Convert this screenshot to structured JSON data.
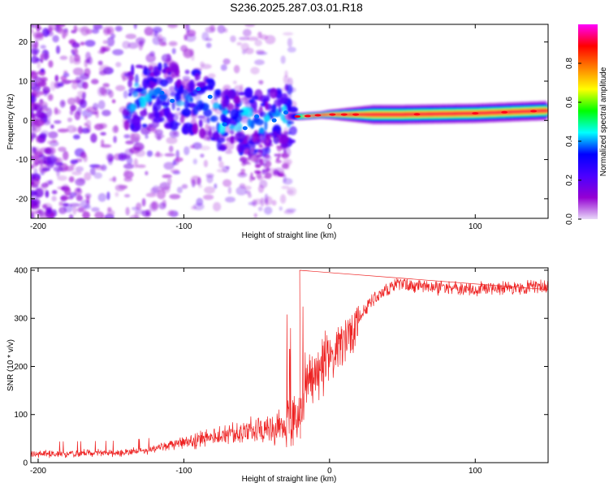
{
  "title": "S236.2025.287.03.01.R18",
  "colors": {
    "snr_line": "#ee2222",
    "background": "#ffffff",
    "axis": "#000000",
    "spectrogram_noise": "#8a2be2",
    "spectrogram_core": "#1e90ff",
    "spectrogram_peak": "#ff2020"
  },
  "chart_data": [
    {
      "type": "heatmap",
      "name": "spectrogram",
      "xlabel": "Height of straight line (km)",
      "ylabel": "Frequency (Hz)",
      "xlim": [
        -205,
        150
      ],
      "ylim": [
        -25,
        24.5
      ],
      "xticks": [
        -200,
        -100,
        0,
        100
      ],
      "xtick_labels": [
        "-200",
        "-100",
        "0",
        "100"
      ],
      "yticks": [
        -20,
        -10,
        0,
        10,
        20
      ],
      "ytick_labels": [
        "-20",
        "-10",
        "0",
        "10",
        "20"
      ],
      "colorbar": {
        "label": "Normalized spectral amplitude",
        "range": [
          0,
          1
        ],
        "ticks": [
          0.0,
          0.2,
          0.4,
          0.6,
          0.8
        ],
        "tick_labels": [
          "0.0",
          "0.2",
          "0.4",
          "0.6",
          "0.8"
        ],
        "colormap": [
          "#e8d8f8",
          "#9400d3",
          "#4b00ff",
          "#0000ff",
          "#00ffff",
          "#00ff00",
          "#ffff00",
          "#ff8000",
          "#ff0000",
          "#ff00ff"
        ]
      },
      "ridge_frequency_hz": [
        {
          "x": -130,
          "y": 6
        },
        {
          "x": -110,
          "y": 6
        },
        {
          "x": -90,
          "y": 5
        },
        {
          "x": -75,
          "y": 1
        },
        {
          "x": -50,
          "y": -1
        },
        {
          "x": -30,
          "y": 1
        },
        {
          "x": -20,
          "y": 1
        },
        {
          "x": 0,
          "y": 1.5
        },
        {
          "x": 50,
          "y": 1.5
        },
        {
          "x": 100,
          "y": 1.8
        },
        {
          "x": 150,
          "y": 2.5
        }
      ]
    },
    {
      "type": "line",
      "name": "snr",
      "xlabel": "Height of straight line (km)",
      "ylabel": "SNR (10 * v/v)",
      "xlim": [
        -205,
        150
      ],
      "ylim": [
        0,
        405
      ],
      "xticks": [
        -200,
        -100,
        0,
        100
      ],
      "xtick_labels": [
        "-200",
        "-100",
        "0",
        "100"
      ],
      "yticks": [
        0,
        100,
        200,
        300,
        400
      ],
      "ytick_labels": [
        "0",
        "100",
        "200",
        "300",
        "400"
      ],
      "series": [
        {
          "name": "SNR",
          "trend": [
            {
              "x": -205,
              "y": 18
            },
            {
              "x": -150,
              "y": 20
            },
            {
              "x": -125,
              "y": 25
            },
            {
              "x": -100,
              "y": 42
            },
            {
              "x": -75,
              "y": 55
            },
            {
              "x": -50,
              "y": 65
            },
            {
              "x": -30,
              "y": 78
            },
            {
              "x": -20,
              "y": 105
            },
            {
              "x": -10,
              "y": 185
            },
            {
              "x": 0,
              "y": 215
            },
            {
              "x": 10,
              "y": 250
            },
            {
              "x": 20,
              "y": 300
            },
            {
              "x": 30,
              "y": 340
            },
            {
              "x": 45,
              "y": 370
            },
            {
              "x": 70,
              "y": 365
            },
            {
              "x": 100,
              "y": 360
            },
            {
              "x": 130,
              "y": 363
            },
            {
              "x": 150,
              "y": 365
            }
          ],
          "peak": {
            "x": -20,
            "y": 400
          }
        }
      ]
    }
  ]
}
